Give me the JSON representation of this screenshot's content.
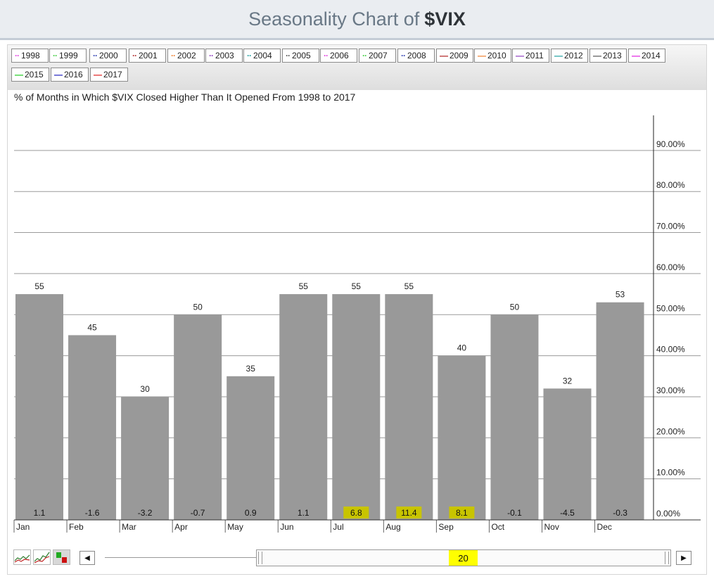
{
  "page": {
    "title_prefix": "Seasonality Chart of",
    "symbol": "$VIX"
  },
  "legend": [
    {
      "label": "1998",
      "color": "#e040e0",
      "style": "dotted"
    },
    {
      "label": "1999",
      "color": "#44cc44",
      "style": "dotted"
    },
    {
      "label": "2000",
      "color": "#3040b0",
      "style": "dotted"
    },
    {
      "label": "2001",
      "color": "#b03030",
      "style": "dotted"
    },
    {
      "label": "2002",
      "color": "#f08030",
      "style": "dotted"
    },
    {
      "label": "2003",
      "color": "#9040c0",
      "style": "dotted"
    },
    {
      "label": "2004",
      "color": "#20a0a0",
      "style": "dotted"
    },
    {
      "label": "2005",
      "color": "#555555",
      "style": "dotted"
    },
    {
      "label": "2006",
      "color": "#e040e0",
      "style": "dotted"
    },
    {
      "label": "2007",
      "color": "#44cc44",
      "style": "dotted"
    },
    {
      "label": "2008",
      "color": "#3040b0",
      "style": "dotted"
    },
    {
      "label": "2009",
      "color": "#b02020",
      "style": "solid"
    },
    {
      "label": "2010",
      "color": "#f08030",
      "style": "solid"
    },
    {
      "label": "2011",
      "color": "#9040c0",
      "style": "solid"
    },
    {
      "label": "2012",
      "color": "#20a0a0",
      "style": "solid"
    },
    {
      "label": "2013",
      "color": "#555555",
      "style": "solid"
    },
    {
      "label": "2014",
      "color": "#e020e0",
      "style": "solid"
    },
    {
      "label": "2015",
      "color": "#22cc22",
      "style": "solid"
    },
    {
      "label": "2016",
      "color": "#2020c0",
      "style": "solid"
    },
    {
      "label": "2017",
      "color": "#e02020",
      "style": "solid"
    }
  ],
  "chart_data": {
    "type": "bar",
    "title": "% of Months in Which $VIX Closed Higher Than It Opened From 1998 to 2017",
    "categories": [
      "Jan",
      "Feb",
      "Mar",
      "Apr",
      "May",
      "Jun",
      "Jul",
      "Aug",
      "Sep",
      "Oct",
      "Nov",
      "Dec"
    ],
    "values": [
      55,
      45,
      30,
      50,
      35,
      55,
      55,
      55,
      40,
      50,
      32,
      53
    ],
    "value_labels": [
      "55",
      "45",
      "30",
      "50",
      "35",
      "55",
      "55",
      "55",
      "40",
      "50",
      "32",
      "53"
    ],
    "bottom_labels": [
      "1.1",
      "-1.6",
      "-3.2",
      "-0.7",
      "0.9",
      "1.1",
      "6.8",
      "11.4",
      "8.1",
      "-0.1",
      "-4.5",
      "-0.3"
    ],
    "highlighted_bottom_labels": [
      "Jul",
      "Aug",
      "Sep"
    ],
    "y_ticks": [
      0,
      10,
      20,
      30,
      40,
      50,
      60,
      70,
      80,
      90
    ],
    "y_tick_labels": [
      "0.00%",
      "10.00%",
      "20.00%",
      "30.00%",
      "40.00%",
      "50.00%",
      "60.00%",
      "70.00%",
      "80.00%",
      "90.00%"
    ],
    "ylim": [
      0,
      100
    ],
    "grid": true,
    "y_axis_position": "right",
    "bar_color": "#999999",
    "highlight_color": "#c8c400"
  },
  "controls": {
    "years_value": "20",
    "highlight_color": "#ffff00"
  }
}
